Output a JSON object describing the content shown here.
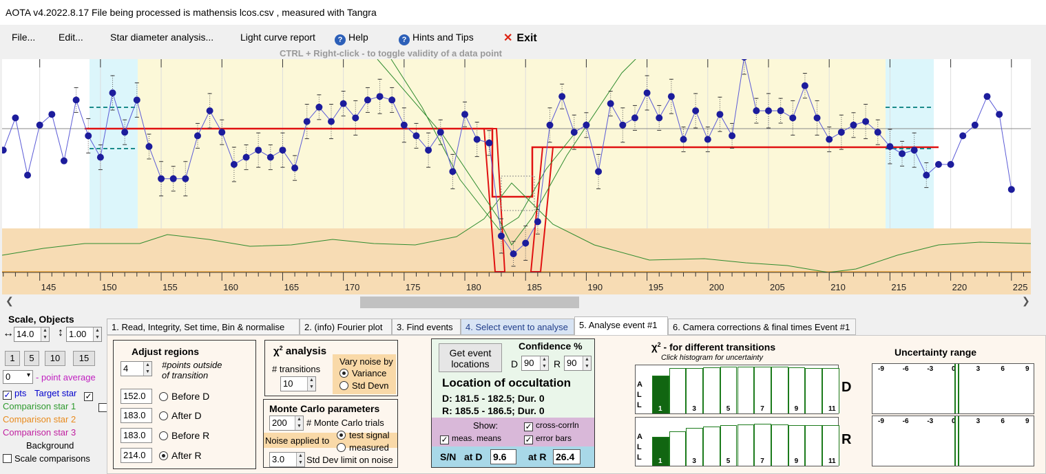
{
  "titlebar": {
    "title": "AOTA v4.2022.8.17    File being processed is  mathensis lcos.csv ,  measured with Tangra"
  },
  "menu": {
    "file": "File...",
    "edit": "Edit...",
    "star_diameter": "Star diameter analysis...",
    "light_curve": "Light curve report",
    "help": "Help",
    "hints": "Hints and Tips",
    "exit": "Exit"
  },
  "hint_text": "CTRL + Right-click   -   to toggle validity of a data point",
  "plot": {
    "x_ticks": [
      "145",
      "150",
      "155",
      "160",
      "165",
      "170",
      "175",
      "180",
      "185",
      "190",
      "195",
      "200",
      "205",
      "210",
      "215",
      "220",
      "225"
    ],
    "x_range": [
      141.9,
      226.6
    ],
    "points": [
      [
        142,
        -0.3
      ],
      [
        143,
        0.15
      ],
      [
        144,
        -0.65
      ],
      [
        145,
        0.05
      ],
      [
        146,
        0.2
      ],
      [
        147,
        -0.45
      ],
      [
        148,
        0.4
      ],
      [
        149,
        -0.1
      ],
      [
        150,
        -0.4
      ],
      [
        151,
        0.5
      ],
      [
        152,
        -0.05
      ],
      [
        153,
        0.4
      ],
      [
        154,
        -0.25
      ],
      [
        155,
        -0.7
      ],
      [
        156,
        -0.7
      ],
      [
        157,
        -0.7
      ],
      [
        158,
        -0.1
      ],
      [
        159,
        0.25
      ],
      [
        160,
        -0.05
      ],
      [
        161,
        -0.5
      ],
      [
        162,
        -0.4
      ],
      [
        163,
        -0.3
      ],
      [
        164,
        -0.4
      ],
      [
        165,
        -0.3
      ],
      [
        166,
        -0.55
      ],
      [
        167,
        0.1
      ],
      [
        168,
        0.3
      ],
      [
        169,
        0.1
      ],
      [
        170,
        0.35
      ],
      [
        171,
        0.15
      ],
      [
        172,
        0.4
      ],
      [
        173,
        0.45
      ],
      [
        174,
        0.4
      ],
      [
        175,
        0.05
      ],
      [
        176,
        -0.1
      ],
      [
        177,
        -0.3
      ],
      [
        178,
        -0.05
      ],
      [
        179,
        -0.6
      ],
      [
        180,
        0.2
      ],
      [
        181,
        -0.15
      ],
      [
        182,
        -0.2
      ],
      [
        183,
        -1.5
      ],
      [
        184,
        -1.75
      ],
      [
        185,
        -1.6
      ],
      [
        186,
        -1.3
      ],
      [
        187,
        0.05
      ],
      [
        188,
        0.45
      ],
      [
        189,
        -0.05
      ],
      [
        190,
        0.05
      ],
      [
        191,
        -0.6
      ],
      [
        192,
        0.35
      ],
      [
        193,
        0.05
      ],
      [
        194,
        0.15
      ],
      [
        195,
        0.5
      ],
      [
        196,
        0.15
      ],
      [
        197,
        0.45
      ],
      [
        198,
        -0.15
      ],
      [
        199,
        0.25
      ],
      [
        200,
        -0.15
      ],
      [
        201,
        0.2
      ],
      [
        202,
        -0.1
      ],
      [
        203,
        1.0
      ],
      [
        204,
        0.25
      ],
      [
        205,
        0.25
      ],
      [
        206,
        0.25
      ],
      [
        207,
        0.15
      ],
      [
        208,
        0.6
      ],
      [
        209,
        0.15
      ],
      [
        210,
        -0.15
      ],
      [
        211,
        -0.05
      ],
      [
        212,
        0.05
      ],
      [
        213,
        0.1
      ],
      [
        214,
        -0.05
      ],
      [
        215,
        -0.25
      ],
      [
        216,
        -0.35
      ],
      [
        217,
        -0.3
      ],
      [
        218,
        -0.65
      ],
      [
        219,
        -0.5
      ],
      [
        220,
        -0.5
      ],
      [
        221,
        -0.1
      ],
      [
        222,
        0.05
      ],
      [
        223,
        0.45
      ],
      [
        224,
        0.2
      ],
      [
        225,
        -0.85
      ]
    ]
  },
  "left": {
    "scale_objects": "Scale,  Objects",
    "scale_x": "14.0",
    "scale_y": "1.00",
    "btns": [
      "1",
      "5",
      "10",
      "15"
    ],
    "avg_value": "0",
    "avg_label": "- point average",
    "pts": "pts",
    "target": "Target star",
    "comp1": "Comparison star 1",
    "comp2": "Comparison star 2",
    "comp3": "Comparison star 3",
    "background": "Background",
    "scale_comparisons": "Scale comparisons",
    "colors": {
      "target": "#0000cc",
      "comp1": "#2e9a2e",
      "comp2": "#e88a1c",
      "comp3": "#c020a0"
    }
  },
  "tabs": [
    "1.  Read, Integrity, Set time, Bin & normalise",
    "2. (info)  Fourier plot",
    "3. Find events",
    "4. Select event to analyse",
    "5. Analyse event #1",
    "6. Camera corrections & final times Event #1"
  ],
  "adjust": {
    "title": "Adjust regions",
    "points_value": "4",
    "points_label": "#points outside of transition",
    "before_d": "152.0",
    "before_d_label": "Before D",
    "after_d": "183.0",
    "after_d_label": "After D",
    "before_r": "183.0",
    "before_r_label": "Before R",
    "after_r": "214.0",
    "after_r_label": "After R"
  },
  "chi": {
    "title": "analysis",
    "symbol": "χ",
    "transitions_label": "# transitions",
    "transitions_value": "10",
    "vary_noise": "Vary noise by",
    "variance": "Variance",
    "std_devn": "Std Devn"
  },
  "monte": {
    "title": "Monte Carlo parameters",
    "trials_value": "200",
    "trials_label": "# Monte Carlo trials",
    "noise_applied": "Noise applied to",
    "test_signal": "test signal",
    "measured": "measured",
    "std_value": "3.0",
    "std_label": "Std Dev limit on noise"
  },
  "events": {
    "get_button": "Get event locations",
    "confidence": "Confidence %",
    "d_label": "D",
    "d_value": "90",
    "r_label": "R",
    "r_value": "90",
    "location_title": "Location of occultation",
    "d_line": "D: 181.5 - 182.5; Dur. 0",
    "r_line": "R: 185.5 - 186.5; Dur. 0",
    "show": "Show:",
    "cross_corrln": "cross-corrln",
    "meas_means": "meas. means",
    "error_bars": "error bars",
    "sn": "S/N",
    "at_d": "at D",
    "sn_d": "9.6",
    "at_r": "at R",
    "sn_r": "26.4"
  },
  "chi2": {
    "title": "- for different transitions",
    "subtitle": "Click histogram for uncertainty",
    "side": [
      "A",
      "L",
      "L"
    ],
    "labels": [
      "1",
      "3",
      "5",
      "7",
      "9",
      "11"
    ],
    "d_heights": [
      0.78,
      0.94,
      0.95,
      0.96,
      0.97,
      0.97,
      0.97,
      0.97,
      0.96,
      0.95,
      0.94
    ],
    "r_heights": [
      0.6,
      0.72,
      0.78,
      0.82,
      0.84,
      0.86,
      0.87,
      0.86,
      0.85,
      0.84,
      0.84
    ],
    "d_letter": "D",
    "r_letter": "R"
  },
  "uncert": {
    "title": "Uncertainty range",
    "ticks": [
      "-9",
      "-6",
      "-3",
      "0",
      "3",
      "6",
      "9"
    ]
  }
}
